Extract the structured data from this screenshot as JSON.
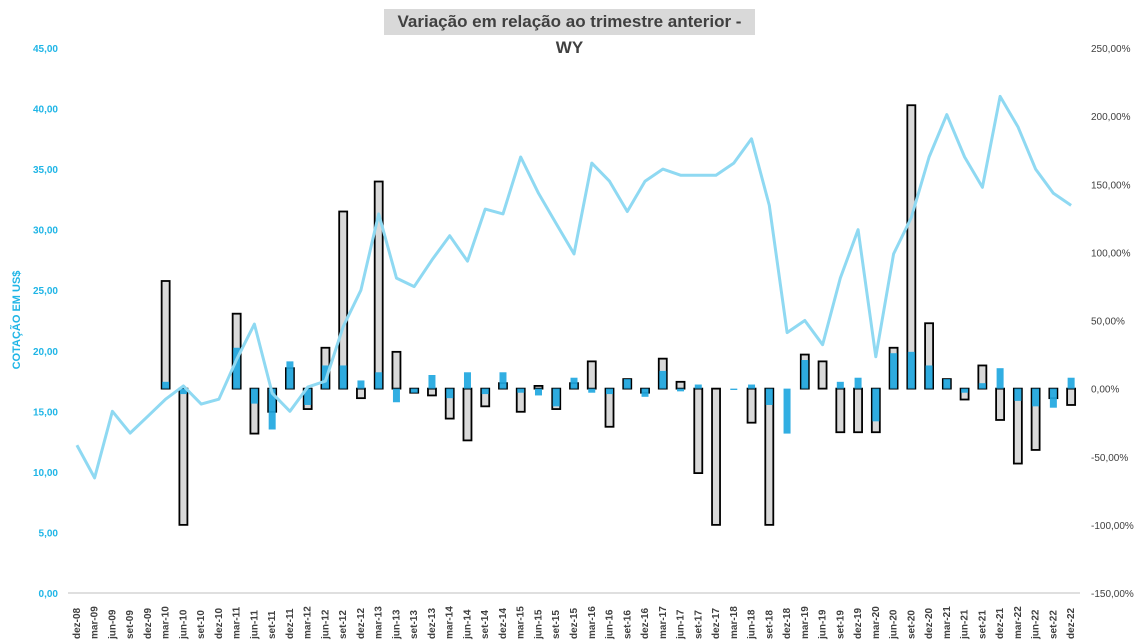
{
  "chart_data": {
    "type": "bar+line",
    "title": "Variação em relação ao trimestre anterior - WY",
    "ylabel": "COTAÇÃO EM US$",
    "ylim": [
      0,
      45
    ],
    "y2lim": [
      -150,
      250
    ],
    "y_ticks": [
      "0,00",
      "5,00",
      "10,00",
      "15,00",
      "20,00",
      "25,00",
      "30,00",
      "35,00",
      "40,00",
      "45,00"
    ],
    "y2_ticks": [
      "-150,00%",
      "-100,00%",
      "-50,00%",
      "0,00%",
      "50,00%",
      "100,00%",
      "150,00%",
      "200,00%",
      "250,00%"
    ],
    "quarters": [
      "dez-08",
      "mar-09",
      "jun-09",
      "set-09",
      "dez-09",
      "mar-10",
      "jun-10",
      "set-10",
      "dez-10",
      "mar-11",
      "jun-11",
      "set-11",
      "dez-11",
      "mar-12",
      "jun-12",
      "set-12",
      "dez-12",
      "mar-13",
      "jun-13",
      "set-13",
      "dez-13",
      "mar-14",
      "jun-14",
      "set-14",
      "dez-14",
      "mar-15",
      "jun-15",
      "set-15",
      "dez-15",
      "mar-16",
      "jun-16",
      "set-16",
      "dez-16",
      "mar-17",
      "jun-17",
      "set-17",
      "dez-17",
      "mar-18",
      "jun-18",
      "set-18",
      "dez-18",
      "mar-19",
      "jun-19",
      "set-19",
      "dez-19",
      "mar-20",
      "jun-20",
      "set-20",
      "dez-20",
      "mar-21",
      "jun-21",
      "set-21",
      "dez-21",
      "mar-22",
      "jun-22",
      "set-22",
      "dez-22"
    ],
    "series": [
      {
        "name": "",
        "kind": "bar-outlined-gray",
        "color": "#d9d9d9",
        "values": [
          0,
          0,
          0,
          0,
          0,
          79,
          -100,
          0,
          0,
          55,
          -33,
          -17,
          15,
          -15,
          30,
          130,
          -7,
          152,
          27,
          -3,
          -5,
          -22,
          -38,
          -13,
          4,
          -17,
          2,
          -15,
          4,
          20,
          -28,
          7,
          -3,
          22,
          5,
          -62,
          -100,
          0,
          -25,
          -100,
          0,
          25,
          20,
          -32,
          -32,
          -32,
          30,
          208,
          48,
          7,
          -8,
          17,
          -23,
          -55,
          -45,
          -7,
          -12
        ]
      },
      {
        "name": "",
        "kind": "bar-blue",
        "color": "#1fa7e0",
        "values": [
          0,
          0,
          0,
          0,
          0,
          5,
          -4,
          0,
          0,
          30,
          -11,
          -30,
          20,
          -12,
          17,
          17,
          6,
          12,
          -10,
          -3,
          10,
          -7,
          12,
          -4,
          12,
          -3,
          -5,
          -13,
          8,
          -3,
          -4,
          7,
          -6,
          13,
          -2,
          3,
          0,
          -1,
          3,
          -12,
          -33,
          21,
          0,
          5,
          8,
          -24,
          26,
          27,
          17,
          7,
          -3,
          4,
          15,
          -9,
          -13,
          -14,
          8
        ]
      },
      {
        "name": "",
        "kind": "line",
        "color": "#8fd9f2",
        "values": [
          12.2,
          9.5,
          15.0,
          13.2,
          14.6,
          16.0,
          17.1,
          15.6,
          16.0,
          19.3,
          22.2,
          16.5,
          15.0,
          17.0,
          17.5,
          22.0,
          25.0,
          31.3,
          26.0,
          25.3,
          27.5,
          29.5,
          27.4,
          31.7,
          31.3,
          36.0,
          33.0,
          30.5,
          28.0,
          35.5,
          34.0,
          31.5,
          34.0,
          35.0,
          34.5,
          34.5,
          34.5,
          35.5,
          37.5,
          32.0,
          21.5,
          22.5,
          20.5,
          26.0,
          30.0,
          19.5,
          28.0,
          31.0,
          36.0,
          39.5,
          36.0,
          33.5,
          41.0,
          38.5,
          35.0,
          33.0,
          32.0
        ]
      }
    ]
  }
}
